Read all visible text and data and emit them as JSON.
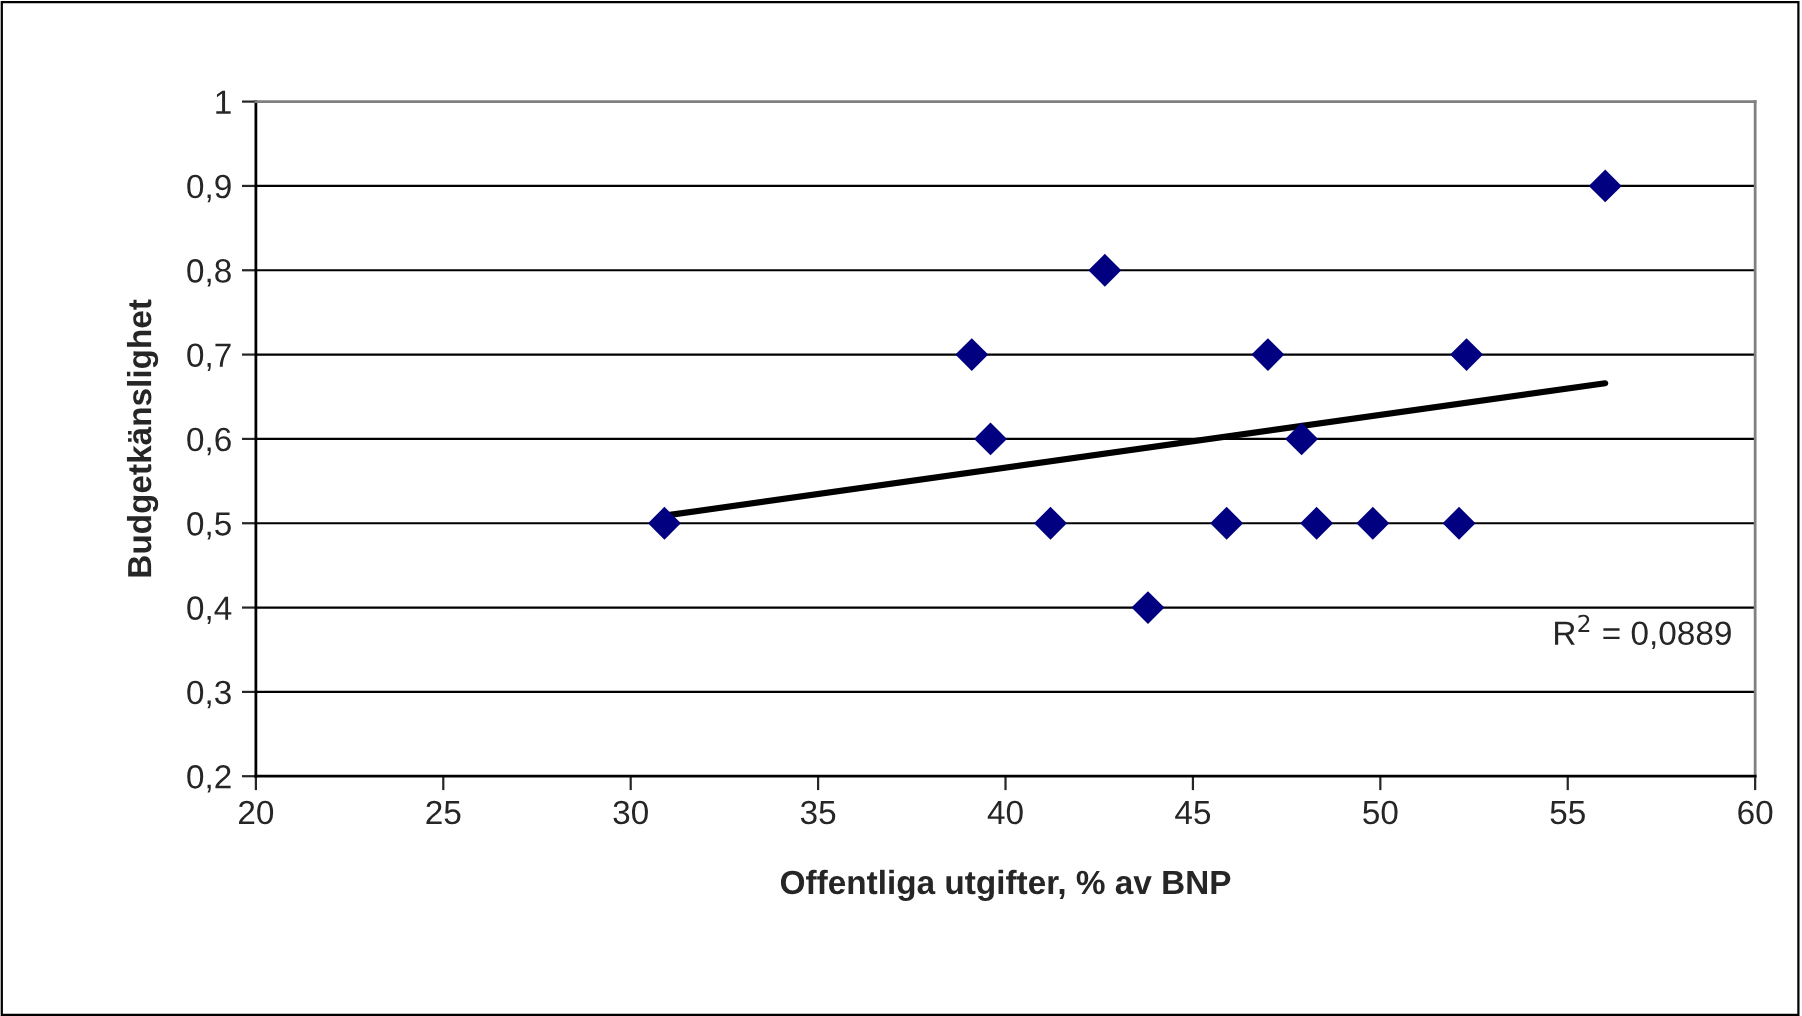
{
  "chart_data": {
    "type": "scatter",
    "xlabel": "Offentliga utgifter, % av BNP",
    "ylabel": "Budgetkänslighet",
    "xlim": [
      20,
      60
    ],
    "xticks": [
      20,
      25,
      30,
      35,
      40,
      45,
      50,
      55,
      60
    ],
    "ylim": [
      0.2,
      1
    ],
    "yticks": [
      {
        "value": 0.2,
        "label": "0,2"
      },
      {
        "value": 0.3,
        "label": "0,3"
      },
      {
        "value": 0.4,
        "label": "0,4"
      },
      {
        "value": 0.5,
        "label": "0,5"
      },
      {
        "value": 0.6,
        "label": "0,6"
      },
      {
        "value": 0.7,
        "label": "0,7"
      },
      {
        "value": 0.8,
        "label": "0,8"
      },
      {
        "value": 0.9,
        "label": "0,9"
      },
      {
        "value": 1,
        "label": "1"
      }
    ],
    "grid": "y",
    "series": [
      {
        "marker": "diamond",
        "color": "#000080",
        "x": [
          30.9,
          39.1,
          39.6,
          41.2,
          42.65,
          43.8,
          45.9,
          47.0,
          47.9,
          48.3,
          49.8,
          52.1,
          52.3,
          56.0
        ],
        "values": [
          0.5,
          0.7,
          0.6,
          0.5,
          0.8,
          0.4,
          0.5,
          0.7,
          0.6,
          0.5,
          0.5,
          0.5,
          0.7,
          0.9
        ]
      },
      {
        "type": "line",
        "color": "#000000",
        "x": [
          30.9,
          56.0
        ],
        "values": [
          0.509,
          0.666
        ]
      }
    ],
    "annotations": [
      "R$^{2}$ = 0,0889"
    ]
  }
}
